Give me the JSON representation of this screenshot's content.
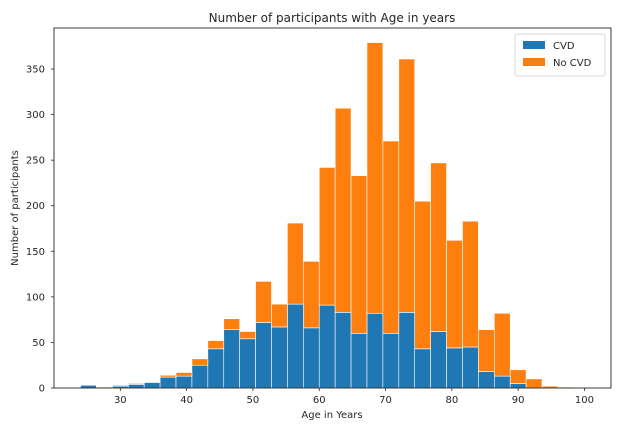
{
  "chart_data": {
    "type": "bar",
    "stacked": true,
    "title": "Number of participants with Age in years",
    "xlabel": "Age in Years",
    "ylabel": "Number of participants",
    "xlim": [
      20,
      104
    ],
    "ylim": [
      0,
      395
    ],
    "xticks": [
      30,
      40,
      50,
      60,
      70,
      80,
      90,
      100
    ],
    "yticks": [
      0,
      50,
      100,
      150,
      200,
      250,
      300,
      350
    ],
    "grid": false,
    "legend_position": "top-right",
    "bins": [
      [
        24,
        26.4
      ],
      [
        26.4,
        28.8
      ],
      [
        28.8,
        31.2
      ],
      [
        31.2,
        33.6
      ],
      [
        33.6,
        36.0
      ],
      [
        36.0,
        38.4
      ],
      [
        38.4,
        40.8
      ],
      [
        40.8,
        43.2
      ],
      [
        43.2,
        45.6
      ],
      [
        45.6,
        48.0
      ],
      [
        48.0,
        50.4
      ],
      [
        50.4,
        52.8
      ],
      [
        52.8,
        55.2
      ],
      [
        55.2,
        57.6
      ],
      [
        57.6,
        60.0
      ],
      [
        60.0,
        62.4
      ],
      [
        62.4,
        64.8
      ],
      [
        64.8,
        67.2
      ],
      [
        67.2,
        69.6
      ],
      [
        69.6,
        72.0
      ],
      [
        72.0,
        74.4
      ],
      [
        74.4,
        76.8
      ],
      [
        76.8,
        79.2
      ],
      [
        79.2,
        81.6
      ],
      [
        81.6,
        84.0
      ],
      [
        84.0,
        86.4
      ],
      [
        86.4,
        88.8
      ],
      [
        88.8,
        91.2
      ],
      [
        91.2,
        93.6
      ],
      [
        93.6,
        96.0
      ],
      [
        96.0,
        98.4
      ],
      [
        98.4,
        100.8
      ]
    ],
    "series": [
      {
        "name": "CVD",
        "color": "#1f77b4",
        "values": [
          3,
          0,
          2,
          4,
          6,
          12,
          13,
          25,
          43,
          64,
          54,
          72,
          67,
          92,
          66,
          91,
          83,
          60,
          82,
          60,
          83,
          43,
          62,
          44,
          45,
          18,
          13,
          5,
          0,
          0,
          0,
          0
        ]
      },
      {
        "name": "No CVD",
        "color": "#ff7f0e",
        "values": [
          0,
          1,
          1,
          1,
          0,
          2,
          4,
          7,
          9,
          12,
          8,
          45,
          25,
          89,
          73,
          151,
          224,
          173,
          297,
          211,
          278,
          162,
          185,
          118,
          138,
          46,
          69,
          15,
          10,
          2,
          1,
          0
        ]
      }
    ]
  }
}
